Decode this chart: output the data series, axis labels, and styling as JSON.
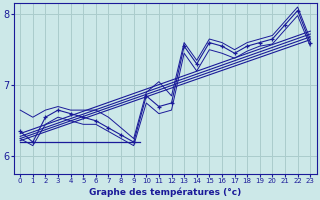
{
  "xlabel": "Graphe des températures (°c)",
  "background_color": "#cce8e8",
  "grid_color": "#aacccc",
  "line_color": "#1a1a99",
  "x_ticks": [
    0,
    1,
    2,
    3,
    4,
    5,
    6,
    7,
    8,
    9,
    10,
    11,
    12,
    13,
    14,
    15,
    16,
    17,
    18,
    19,
    20,
    21,
    22,
    23
  ],
  "ylim": [
    5.75,
    8.15
  ],
  "xlim": [
    -0.5,
    23.5
  ],
  "ytick_positions": [
    6,
    7,
    8
  ],
  "main_series_y": [
    6.35,
    6.2,
    6.55,
    6.65,
    6.6,
    6.55,
    6.5,
    6.4,
    6.3,
    6.2,
    6.85,
    6.7,
    6.75,
    7.55,
    7.3,
    7.6,
    7.55,
    7.45,
    7.55,
    7.6,
    7.65,
    7.85,
    8.05,
    7.6
  ],
  "trend_lines": [
    {
      "x": [
        0,
        23
      ],
      "y": [
        6.28,
        7.72
      ]
    },
    {
      "x": [
        0,
        23
      ],
      "y": [
        6.32,
        7.76
      ]
    },
    {
      "x": [
        0,
        23
      ],
      "y": [
        6.25,
        7.68
      ]
    },
    {
      "x": [
        0,
        23
      ],
      "y": [
        6.22,
        7.64
      ]
    }
  ],
  "flat_line": {
    "x": [
      0,
      9.5
    ],
    "y": [
      6.2,
      6.2
    ]
  },
  "envelope_upper": [
    6.65,
    6.55,
    6.65,
    6.7,
    6.65,
    6.65,
    6.65,
    6.55,
    6.4,
    6.25,
    6.9,
    7.05,
    6.85,
    7.6,
    7.35,
    7.65,
    7.6,
    7.5,
    7.6,
    7.65,
    7.7,
    7.9,
    8.1,
    7.65
  ],
  "envelope_lower": [
    6.25,
    6.15,
    6.45,
    6.55,
    6.5,
    6.45,
    6.45,
    6.35,
    6.25,
    6.15,
    6.75,
    6.6,
    6.65,
    7.45,
    7.2,
    7.5,
    7.45,
    7.38,
    7.48,
    7.55,
    7.58,
    7.78,
    7.98,
    7.55
  ]
}
